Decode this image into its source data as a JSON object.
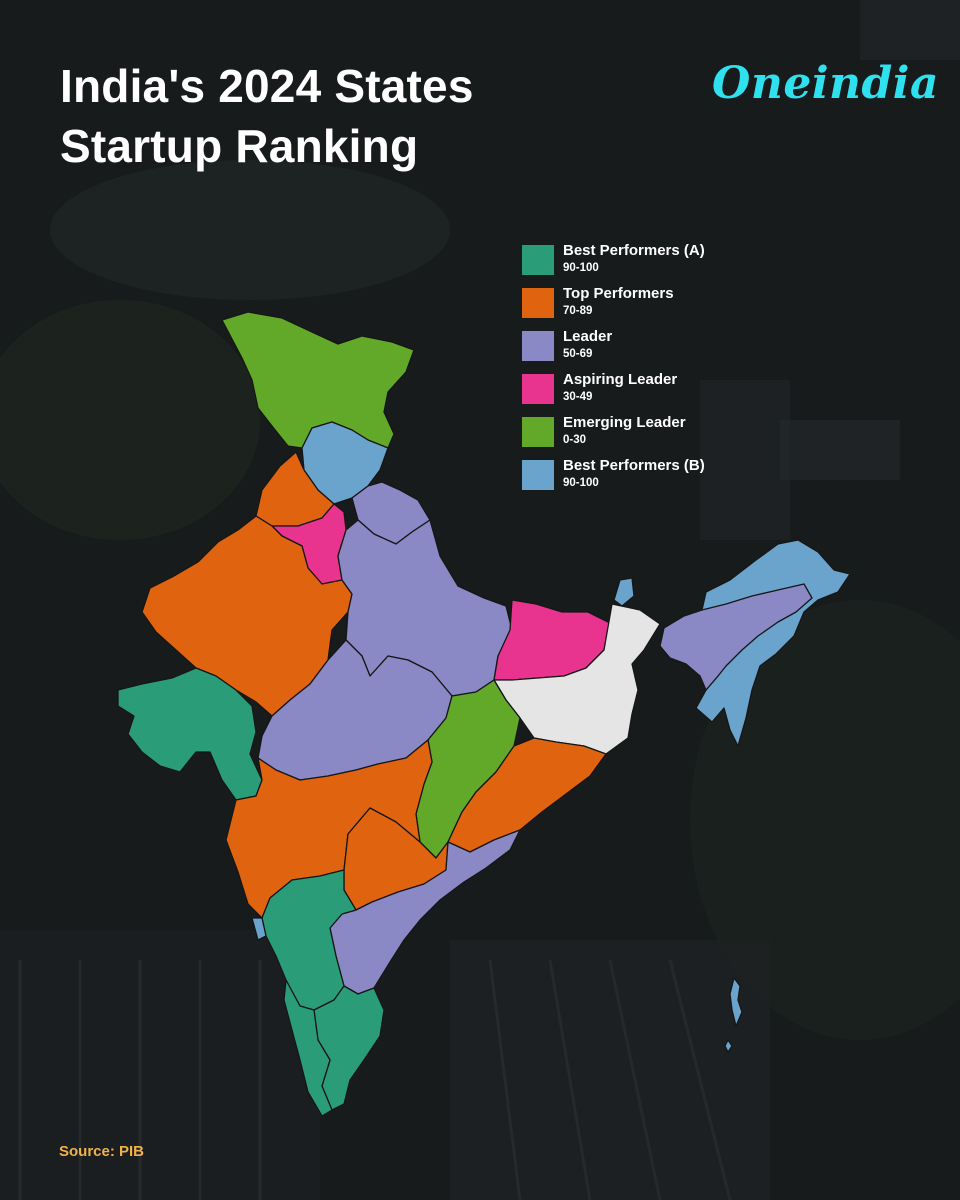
{
  "header": {
    "title_line1": "India's 2024 States",
    "title_line2": "Startup Ranking",
    "brand": "Oneindia"
  },
  "legend": {
    "items": [
      {
        "label": "Best Performers (A)",
        "range": "90-100",
        "color": "#2a9d78"
      },
      {
        "label": "Top Performers",
        "range": "70-89",
        "color": "#e0640f"
      },
      {
        "label": "Leader",
        "range": "50-69",
        "color": "#8b88c6"
      },
      {
        "label": "Aspiring Leader",
        "range": "30-49",
        "color": "#e8348e"
      },
      {
        "label": "Emerging Leader",
        "range": "0-30",
        "color": "#62a829"
      },
      {
        "label": "Best Performers (B)",
        "range": "90-100",
        "color": "#6aa3cb"
      }
    ]
  },
  "map": {
    "unranked_color": "#e5e5e5",
    "regions": [
      {
        "name": "jammu-kashmir-ladakh",
        "category": "Emerging Leader"
      },
      {
        "name": "himachal-pradesh",
        "category": "Best Performers (B)"
      },
      {
        "name": "uttarakhand",
        "category": "Leader"
      },
      {
        "name": "punjab",
        "category": "Top Performers"
      },
      {
        "name": "haryana",
        "category": "Aspiring Leader"
      },
      {
        "name": "rajasthan",
        "category": "Top Performers"
      },
      {
        "name": "gujarat",
        "category": "Best Performers (A)"
      },
      {
        "name": "uttar-pradesh",
        "category": "Leader"
      },
      {
        "name": "madhya-pradesh",
        "category": "Leader"
      },
      {
        "name": "bihar",
        "category": "Aspiring Leader"
      },
      {
        "name": "jharkhand-west-bengal",
        "category": "unranked"
      },
      {
        "name": "chhattisgarh",
        "category": "Emerging Leader"
      },
      {
        "name": "odisha",
        "category": "Top Performers"
      },
      {
        "name": "maharashtra",
        "category": "Top Performers"
      },
      {
        "name": "telangana",
        "category": "Top Performers"
      },
      {
        "name": "andhra-pradesh",
        "category": "Leader"
      },
      {
        "name": "karnataka",
        "category": "Best Performers (A)"
      },
      {
        "name": "tamil-nadu",
        "category": "Best Performers (A)"
      },
      {
        "name": "kerala",
        "category": "Best Performers (A)"
      },
      {
        "name": "goa",
        "category": "Best Performers (B)"
      },
      {
        "name": "sikkim",
        "category": "Best Performers (B)"
      },
      {
        "name": "northeast-states",
        "category": "Best Performers (B)"
      },
      {
        "name": "assam",
        "category": "Leader"
      },
      {
        "name": "andaman-nicobar",
        "category": "Best Performers (B)"
      }
    ]
  },
  "footer": {
    "source": "Source: PIB"
  }
}
